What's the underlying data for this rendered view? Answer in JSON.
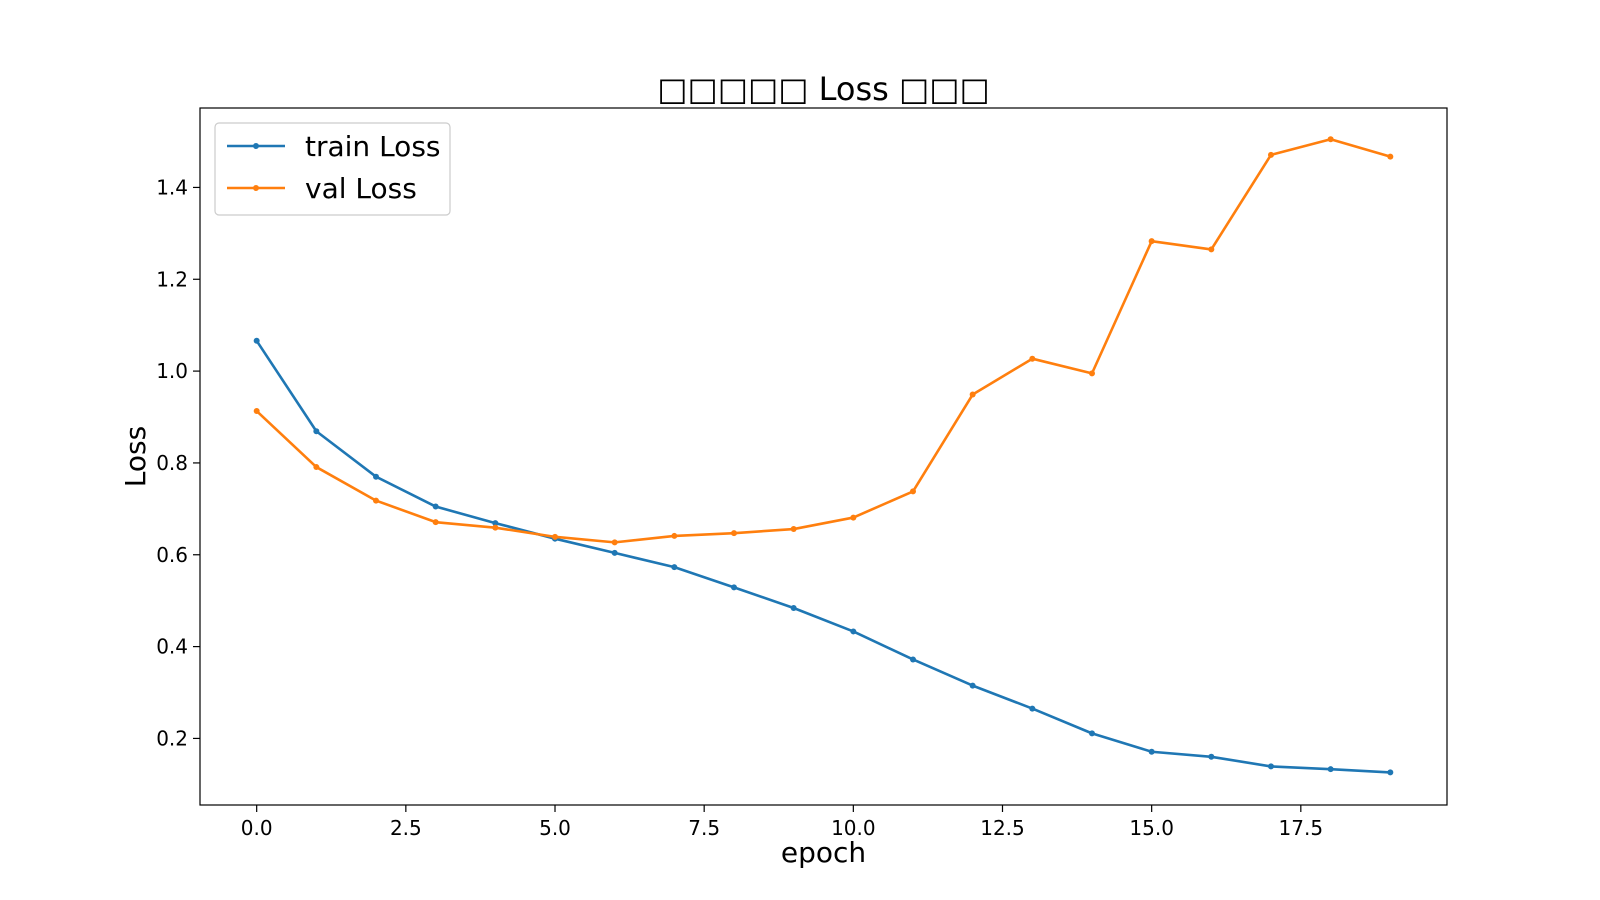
{
  "chart_data": {
    "type": "line",
    "title": "□□□□□ Loss □□□",
    "xlabel": "epoch",
    "ylabel": "Loss",
    "xlim": [
      -0.95,
      19.95
    ],
    "ylim": [
      0.055,
      1.573
    ],
    "xticks": [
      0.0,
      2.5,
      5.0,
      7.5,
      10.0,
      12.5,
      15.0,
      17.5
    ],
    "xtick_labels": [
      "0.0",
      "2.5",
      "5.0",
      "7.5",
      "10.0",
      "12.5",
      "15.0",
      "17.5"
    ],
    "yticks": [
      0.2,
      0.4,
      0.6,
      0.8,
      1.0,
      1.2,
      1.4
    ],
    "ytick_labels": [
      "0.2",
      "0.4",
      "0.6",
      "0.8",
      "1.0",
      "1.2",
      "1.4"
    ],
    "grid": false,
    "legend_position": "top-left",
    "x": [
      0,
      1,
      2,
      3,
      4,
      5,
      6,
      7,
      8,
      9,
      10,
      11,
      12,
      13,
      14,
      15,
      16,
      17,
      18,
      19
    ],
    "series": [
      {
        "name": "train Loss",
        "color": "#1f77b4",
        "marker": "dot",
        "values": [
          1.066,
          0.869,
          0.77,
          0.705,
          0.669,
          0.635,
          0.604,
          0.573,
          0.529,
          0.484,
          0.433,
          0.372,
          0.315,
          0.265,
          0.211,
          0.171,
          0.16,
          0.139,
          0.133,
          0.126
        ]
      },
      {
        "name": "val Loss",
        "color": "#ff7f0e",
        "marker": "dot",
        "values": [
          0.913,
          0.791,
          0.718,
          0.671,
          0.659,
          0.639,
          0.627,
          0.641,
          0.647,
          0.656,
          0.681,
          0.738,
          0.949,
          1.027,
          0.995,
          1.283,
          1.265,
          1.471,
          1.505,
          1.467
        ]
      }
    ]
  }
}
